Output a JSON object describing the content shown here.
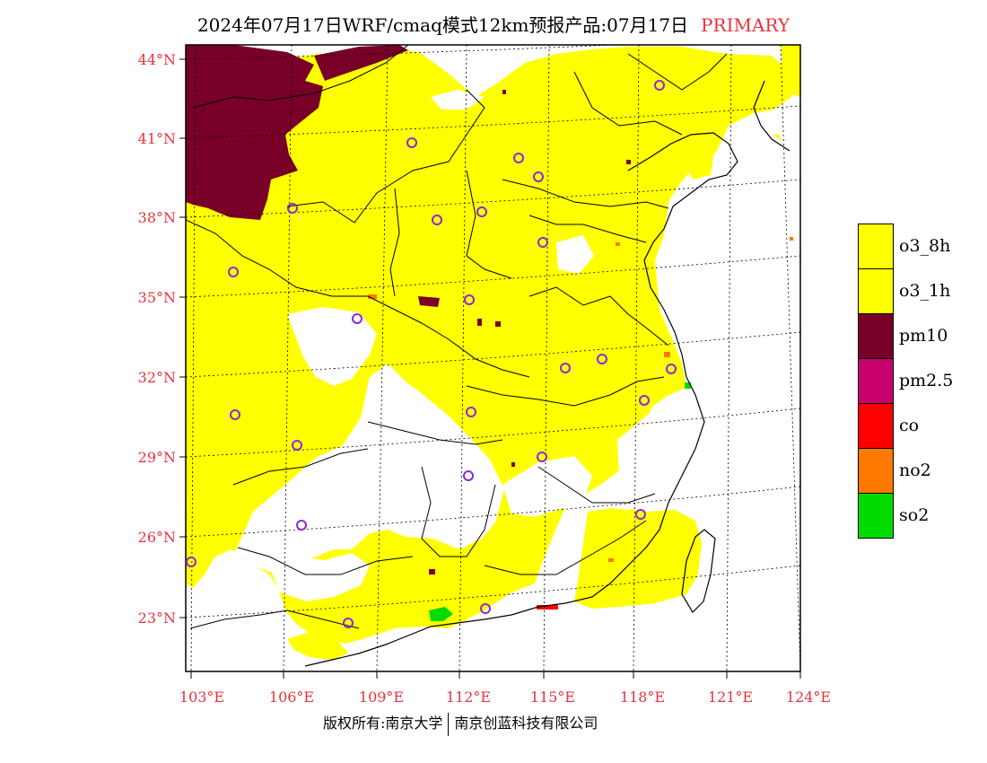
{
  "title": {
    "text": "2024年07月17日WRF/cmaq模式12km预报产品:07月17日",
    "tag": "PRIMARY"
  },
  "colors": {
    "o3_8h": "#ffff00",
    "o3_1h": "#ffff00",
    "pm10": "#780028",
    "pm25": "#c8006e",
    "co": "#ff0000",
    "no2": "#ff7800",
    "so2": "#00dc00",
    "station": "#8c28dc",
    "axis_label": "#e8323c"
  },
  "map": {
    "lat_labels": [
      "44°N",
      "41°N",
      "38°N",
      "35°N",
      "32°N",
      "29°N",
      "26°N",
      "23°N"
    ],
    "lon_labels": [
      "103°E",
      "106°E",
      "109°E",
      "112°E",
      "115°E",
      "118°E",
      "121°E",
      "124°E"
    ]
  },
  "legend": [
    {
      "label": "o3_8h",
      "color": "#ffff00"
    },
    {
      "label": "o3_1h",
      "color": "#ffff00"
    },
    {
      "label": "pm10",
      "color": "#780028"
    },
    {
      "label": "pm2.5",
      "color": "#c8006e"
    },
    {
      "label": "co",
      "color": "#ff0000"
    },
    {
      "label": "no2",
      "color": "#ff7800"
    },
    {
      "label": "so2",
      "color": "#00dc00"
    }
  ],
  "credit": {
    "left": "版权所有:南京大学",
    "right": "南京创蓝科技有限公司"
  }
}
